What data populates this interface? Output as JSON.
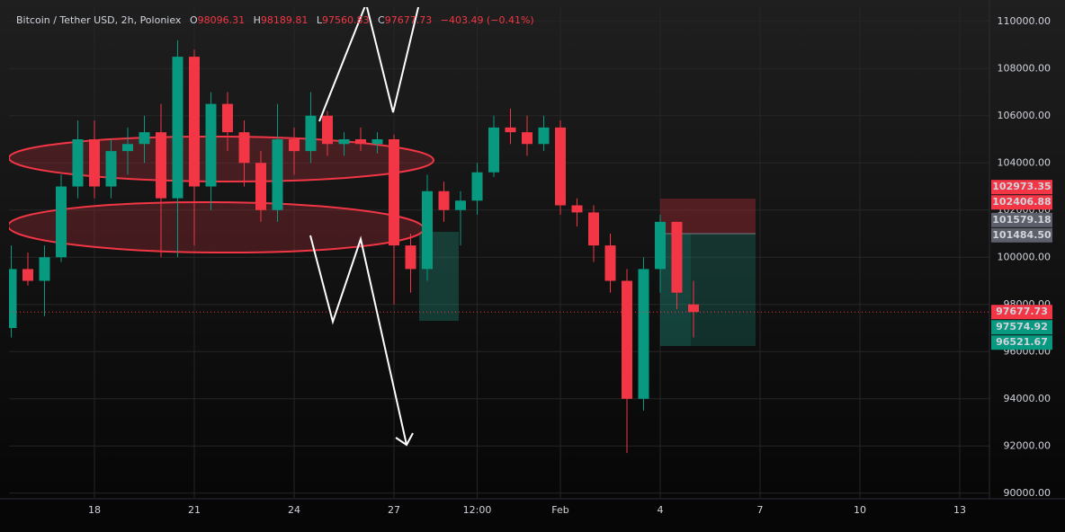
{
  "chart_data": {
    "type": "candlestick",
    "title": "Bitcoin / Tether USD, 2h, Poloniex",
    "ohlc": [
      {
        "key": "O",
        "value": 98096.31
      },
      {
        "key": "H",
        "value": 98189.81
      },
      {
        "key": "L",
        "value": 97560.83
      },
      {
        "key": "C",
        "value": 97677.73
      }
    ],
    "change": "−403.49 (−0.41%)",
    "categories": [
      null,
      null,
      null,
      null,
      null,
      "18",
      null,
      null,
      null,
      null,
      null,
      "21",
      null,
      null,
      null,
      null,
      null,
      "24",
      null,
      null,
      null,
      null,
      null,
      "27",
      null,
      null,
      null,
      null,
      "12:00",
      null,
      null,
      null,
      null,
      "Feb",
      null,
      null,
      null,
      null,
      null,
      "4",
      null,
      null,
      null,
      null,
      null,
      "7",
      null,
      null,
      null,
      null,
      null,
      "10",
      null,
      null,
      null,
      null,
      null,
      "13",
      null
    ],
    "open": [
      97000,
      99500,
      99000,
      100000,
      103000,
      105000,
      103000,
      104500,
      104800,
      105300,
      102500,
      108500,
      103000,
      106500,
      105300,
      104000,
      102000,
      105000,
      104500,
      106000,
      104800,
      105000,
      104800,
      105000,
      100500,
      99500,
      102800,
      102000,
      102400,
      103600,
      105500,
      105300,
      104800,
      105500,
      102200,
      101900,
      100500,
      99000,
      94000,
      99500,
      101500,
      98000,
      null,
      null,
      null,
      null,
      null,
      null,
      null,
      null,
      null,
      null,
      null,
      null,
      null,
      null,
      null,
      null,
      null
    ],
    "high": [
      100500,
      100200,
      100500,
      103500,
      105800,
      105800,
      105000,
      105500,
      106000,
      106500,
      109200,
      108800,
      107000,
      107000,
      105800,
      104500,
      106500,
      105500,
      107000,
      106200,
      105300,
      105500,
      105300,
      105200,
      101000,
      103500,
      103200,
      102800,
      104000,
      106000,
      106300,
      106000,
      106000,
      105800,
      102500,
      102200,
      101000,
      99500,
      100000,
      101800,
      101500,
      99000,
      null,
      null,
      null,
      null,
      null,
      null,
      null,
      null,
      null,
      null,
      null,
      null,
      null,
      null,
      null,
      null,
      null
    ],
    "low": [
      96600,
      98800,
      97500,
      99800,
      102500,
      102500,
      102500,
      103500,
      104000,
      100000,
      100000,
      100500,
      102000,
      104500,
      103000,
      101500,
      101500,
      103500,
      104000,
      104300,
      104300,
      104500,
      104400,
      98000,
      98500,
      99000,
      101500,
      100500,
      101800,
      103400,
      104800,
      104300,
      104500,
      101800,
      101300,
      99800,
      98500,
      91700,
      93500,
      98500,
      97800,
      96600,
      null,
      null,
      null,
      null,
      null,
      null,
      null,
      null,
      null,
      null,
      null,
      null,
      null,
      null,
      null,
      null,
      null
    ],
    "close": [
      99500,
      99000,
      100000,
      103000,
      105000,
      103000,
      104500,
      104800,
      105300,
      102500,
      108500,
      103000,
      106500,
      105300,
      104000,
      102000,
      105000,
      104500,
      106000,
      104800,
      105000,
      104800,
      105000,
      100500,
      99500,
      102800,
      102000,
      102400,
      103600,
      105500,
      105300,
      104800,
      105500,
      102200,
      101900,
      100500,
      99000,
      94000,
      99500,
      101500,
      98500,
      97677.73,
      null,
      null,
      null,
      null,
      null,
      null,
      null,
      null,
      null,
      null,
      null,
      null,
      null,
      null,
      null,
      null,
      null
    ],
    "up_color": "#089981",
    "down_color": "#f23645",
    "ylim": [
      89800,
      110600
    ],
    "yticks": [
      {
        "value": 90000,
        "label": "90000.00"
      },
      {
        "value": 92000,
        "label": "92000.00"
      },
      {
        "value": 94000,
        "label": "94000.00"
      },
      {
        "value": 96000,
        "label": "96000.00"
      },
      {
        "value": 98000,
        "label": "98000.00"
      },
      {
        "value": 100000,
        "label": "100000.00"
      },
      {
        "value": 102000,
        "label": "102000.00"
      },
      {
        "value": 104000,
        "label": "104000.00"
      },
      {
        "value": 106000,
        "label": "106000.00"
      },
      {
        "value": 108000,
        "label": "108000.00"
      },
      {
        "value": 110000,
        "label": "110000.00"
      }
    ],
    "grid": true,
    "price_tags": [
      {
        "value": 102973.35,
        "label": "102973.35",
        "color": "#f23645"
      },
      {
        "value": 102406.88,
        "label": "102406.88",
        "color": "#f23645"
      },
      {
        "value": 101579.18,
        "label": "101579.18",
        "color": "#5d606b"
      },
      {
        "value": 101484.5,
        "label": "101484.50",
        "color": "#5d606b"
      },
      {
        "value": 97677.73,
        "label": "97677.73",
        "color": "#f23645"
      },
      {
        "value": 97574.92,
        "label": "97574.92",
        "color": "#089981"
      },
      {
        "value": 96521.67,
        "label": "96521.67",
        "color": "#089981"
      }
    ]
  }
}
